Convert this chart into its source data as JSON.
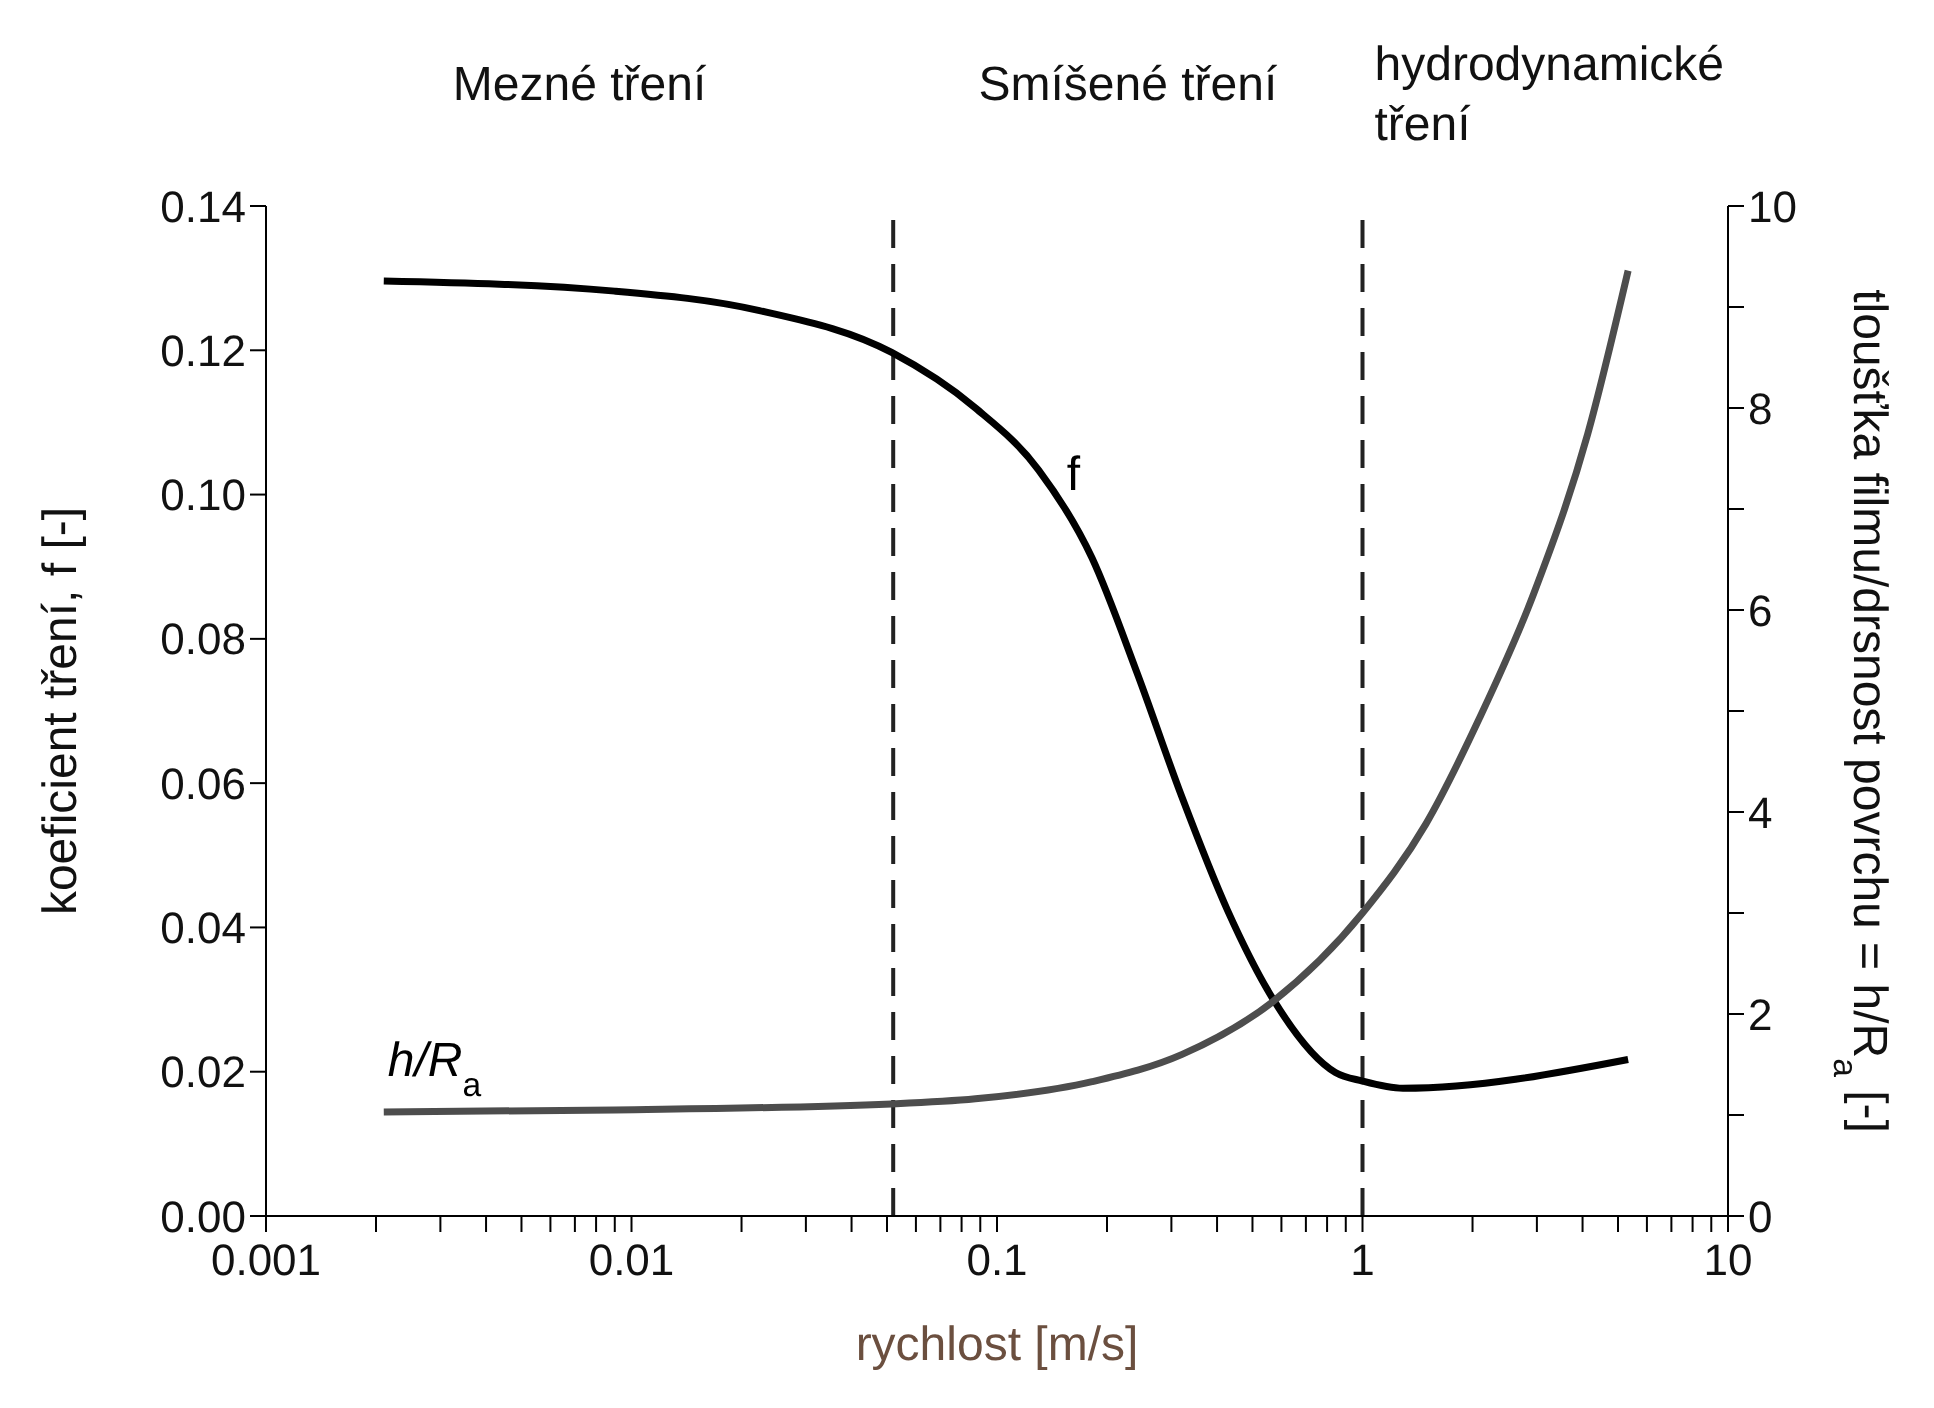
{
  "chart_data": {
    "type": "line",
    "xlabel": "rychlost [m/s]",
    "ylabel": "koeficient tření, f [-]",
    "y2label": "tloušťka filmu/drsnost povrchu = h/R$_{a}$ [-]",
    "annotations": [
      "Mezné tření",
      "Smíšené tření",
      "hydrodynamické tření"
    ],
    "log": "x",
    "marker": "none",
    "line_style": "solid",
    "xlim": [
      0.001,
      10
    ],
    "xticks": [
      {
        "value": 0.001,
        "label": "0.001"
      },
      {
        "value": 0.002,
        "label": null
      },
      {
        "value": 0.003,
        "label": null
      },
      {
        "value": 0.004,
        "label": null
      },
      {
        "value": 0.005,
        "label": null
      },
      {
        "value": 0.006,
        "label": null
      },
      {
        "value": 0.007,
        "label": null
      },
      {
        "value": 0.008,
        "label": null
      },
      {
        "value": 0.009,
        "label": null
      },
      {
        "value": 0.01,
        "label": "0.01"
      },
      {
        "value": 0.02,
        "label": null
      },
      {
        "value": 0.03,
        "label": null
      },
      {
        "value": 0.04,
        "label": null
      },
      {
        "value": 0.05,
        "label": null
      },
      {
        "value": 0.06,
        "label": null
      },
      {
        "value": 0.07,
        "label": null
      },
      {
        "value": 0.08,
        "label": null
      },
      {
        "value": 0.09,
        "label": null
      },
      {
        "value": 0.1,
        "label": "0.1"
      },
      {
        "value": 0.2,
        "label": null
      },
      {
        "value": 0.3,
        "label": null
      },
      {
        "value": 0.4,
        "label": null
      },
      {
        "value": 0.5,
        "label": null
      },
      {
        "value": 0.6,
        "label": null
      },
      {
        "value": 0.7,
        "label": null
      },
      {
        "value": 0.8,
        "label": null
      },
      {
        "value": 0.9,
        "label": null
      },
      {
        "value": 1,
        "label": "1"
      },
      {
        "value": 2,
        "label": null
      },
      {
        "value": 3,
        "label": null
      },
      {
        "value": 4,
        "label": null
      },
      {
        "value": 5,
        "label": null
      },
      {
        "value": 6,
        "label": null
      },
      {
        "value": 7,
        "label": null
      },
      {
        "value": 8,
        "label": null
      },
      {
        "value": 9,
        "label": null
      },
      {
        "value": 10,
        "label": "10"
      }
    ],
    "ylim": [
      0,
      0.14
    ],
    "yticks": [
      {
        "value": 0,
        "label": "0.00"
      },
      {
        "value": 0.02,
        "label": "0.02"
      },
      {
        "value": 0.04,
        "label": "0.04"
      },
      {
        "value": 0.06,
        "label": "0.06"
      },
      {
        "value": 0.08,
        "label": "0.08"
      },
      {
        "value": 0.1,
        "label": "0.10"
      },
      {
        "value": 0.12,
        "label": "0.12"
      },
      {
        "value": 0.14,
        "label": "0.14"
      }
    ],
    "y2lim": [
      0,
      10
    ],
    "y2ticks": [
      0,
      {
        "value": 1,
        "label": null
      },
      2,
      {
        "value": 3,
        "label": null
      },
      4,
      {
        "value": 5,
        "label": null
      },
      6,
      {
        "value": 7,
        "label": null
      },
      8,
      {
        "value": 9,
        "label": null
      },
      10
    ],
    "ref_lines": [
      {
        "axis": "x",
        "value": 0.052,
        "color": "#222222",
        "line_style": "dashed"
      },
      {
        "axis": "x",
        "value": 1,
        "color": "#222222",
        "line_style": "dashed"
      }
    ],
    "series": [
      {
        "name": "f",
        "color": "#000000",
        "x": [
          0.0021,
          0.009,
          0.0224,
          0.0515,
          0.0873,
          0.13,
          0.182,
          0.242,
          0.321,
          0.427,
          0.567,
          0.843,
          1,
          1.29,
          5.33
        ],
        "values": [
          0.1296,
          0.1282,
          0.1255,
          0.1197,
          0.112,
          0.1034,
          0.0912,
          0.0752,
          0.058,
          0.0424,
          0.0302,
          0.0199,
          0.0187,
          0.0177,
          0.0217
        ]
      },
      {
        "name": "h/R$_{a}$",
        "color": "#4d4d4d",
        "axis": "y2",
        "x": [
          0.0021,
          0.009,
          0.0515,
          0.0873,
          0.182,
          0.321,
          0.567,
          1,
          1.49,
          2.09,
          2.94,
          4.13,
          5.33
        ],
        "values": [
          1.03,
          1.05,
          1.11,
          1.16,
          1.33,
          1.6,
          2.12,
          3.0,
          3.88,
          4.93,
          6.16,
          7.74,
          9.36
        ]
      }
    ]
  }
}
